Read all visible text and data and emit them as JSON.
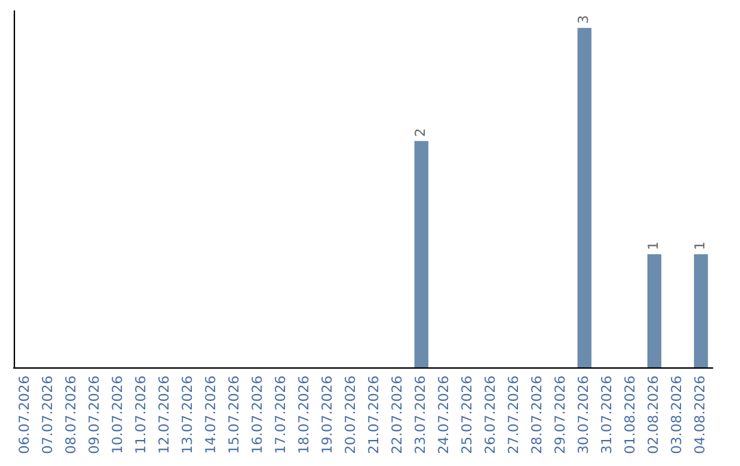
{
  "chart_data": {
    "type": "bar",
    "categories": [
      "06.07.2026",
      "07.07.2026",
      "08.07.2026",
      "09.07.2026",
      "10.07.2026",
      "11.07.2026",
      "12.07.2026",
      "13.07.2026",
      "14.07.2026",
      "15.07.2026",
      "16.07.2026",
      "17.07.2026",
      "18.07.2026",
      "19.07.2026",
      "20.07.2026",
      "21.07.2026",
      "22.07.2026",
      "23.07.2026",
      "24.07.2026",
      "25.07.2026",
      "26.07.2026",
      "27.07.2026",
      "28.07.2026",
      "29.07.2026",
      "30.07.2026",
      "31.07.2026",
      "01.08.2026",
      "02.08.2026",
      "03.08.2026",
      "04.08.2026"
    ],
    "values": [
      null,
      null,
      null,
      null,
      null,
      null,
      null,
      null,
      null,
      null,
      null,
      null,
      null,
      null,
      null,
      null,
      null,
      2,
      null,
      null,
      null,
      null,
      null,
      null,
      3,
      null,
      null,
      1,
      null,
      1
    ],
    "data_labels": true,
    "color": "#6b8cac",
    "grid": false
  }
}
